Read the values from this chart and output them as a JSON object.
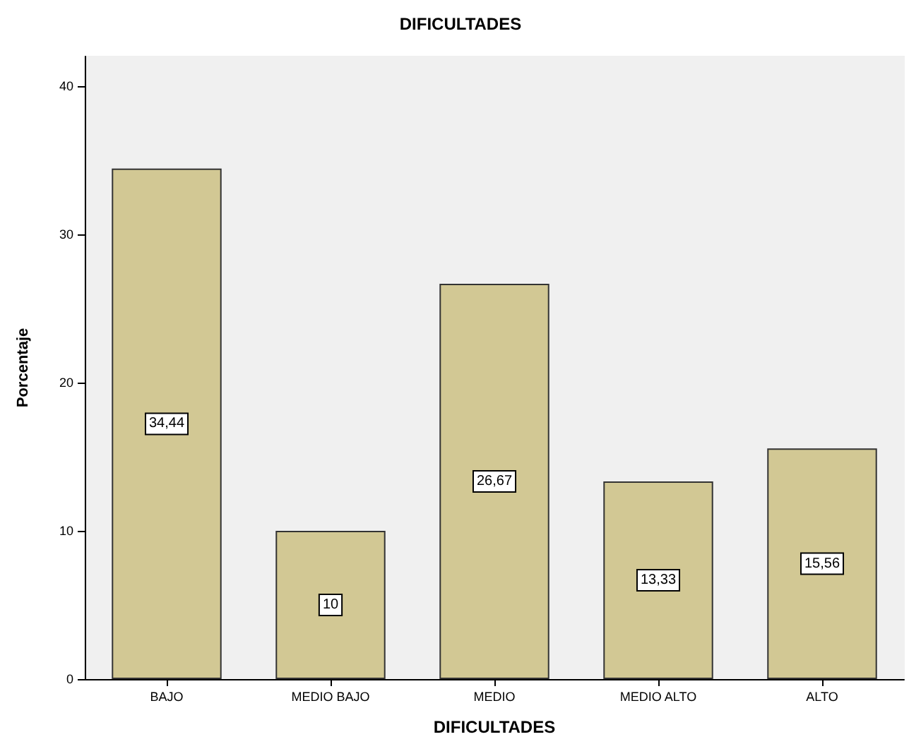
{
  "chart_data": {
    "type": "bar",
    "title": "DIFICULTADES",
    "xlabel": "DIFICULTADES",
    "ylabel": "Porcentaje",
    "categories": [
      "BAJO",
      "MEDIO BAJO",
      "MEDIO",
      "MEDIO ALTO",
      "ALTO"
    ],
    "values": [
      34.44,
      10,
      26.67,
      13.33,
      15.56
    ],
    "value_labels": [
      "34,44",
      "10",
      "26,67",
      "13,33",
      "15,56"
    ],
    "color": "#d2c894",
    "ylim": [
      0,
      42
    ],
    "yticks": [
      0,
      10,
      20,
      30,
      40
    ],
    "grid": false
  }
}
